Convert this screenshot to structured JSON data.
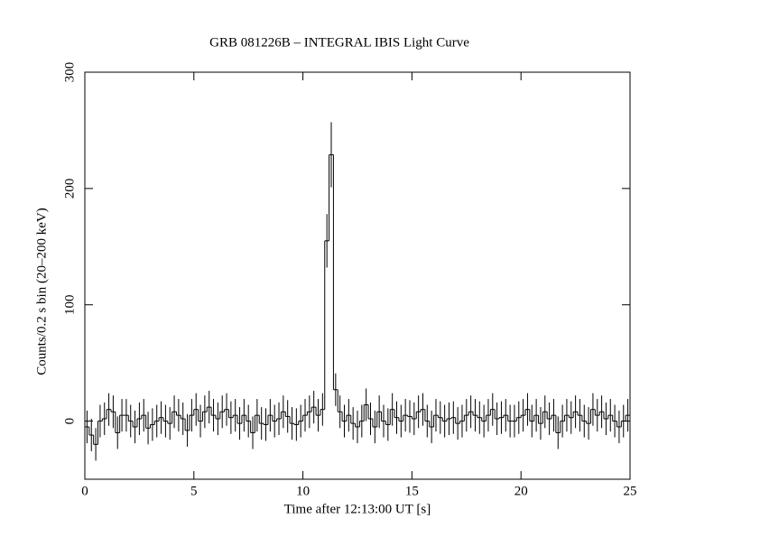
{
  "chart_data": {
    "type": "histogram",
    "title": "GRB 081226B – INTEGRAL IBIS Light Curve",
    "x_label": "Time after 12:13:00 UT [s]",
    "y_label": "Counts/0.2 s bin (20–200 keV)",
    "bins": [
      0,
      0.2,
      0.4,
      0.6,
      0.8,
      1,
      1.2,
      1.4,
      1.6,
      1.8,
      2,
      2.2,
      2.4,
      2.6,
      2.8,
      3,
      3.2,
      3.4,
      3.6,
      3.8,
      4,
      4.2,
      4.4,
      4.6,
      4.8,
      5,
      5.2,
      5.4,
      5.6,
      5.8,
      6,
      6.2,
      6.4,
      6.6,
      6.8,
      7,
      7.2,
      7.4,
      7.6,
      7.8,
      8,
      8.2,
      8.4,
      8.6,
      8.8,
      9,
      9.2,
      9.4,
      9.6,
      9.8,
      10,
      10.2,
      10.4,
      10.6,
      10.8,
      11,
      11.2,
      11.4,
      11.6,
      11.8,
      12,
      12.2,
      12.4,
      12.6,
      12.8,
      13,
      13.2,
      13.4,
      13.6,
      13.8,
      14,
      14.2,
      14.4,
      14.6,
      14.8,
      15,
      15.2,
      15.4,
      15.6,
      15.8,
      16,
      16.2,
      16.4,
      16.6,
      16.8,
      17,
      17.2,
      17.4,
      17.6,
      17.8,
      18,
      18.2,
      18.4,
      18.6,
      18.8,
      19,
      19.2,
      19.4,
      19.6,
      19.8,
      20,
      20.2,
      20.4,
      20.6,
      20.8,
      21,
      21.2,
      21.4,
      21.6,
      21.8,
      22,
      22.2,
      22.4,
      22.6,
      22.8,
      23,
      23.2,
      23.4,
      23.6,
      23.8,
      24,
      24.2,
      24.4,
      24.6,
      24.8,
      25
    ],
    "values": [
      -5,
      -12,
      -20,
      0,
      2,
      10,
      8,
      -10,
      5,
      5,
      0,
      -5,
      2,
      5,
      -6,
      -3,
      0,
      3,
      0,
      -2,
      8,
      5,
      2,
      -8,
      5,
      10,
      0,
      8,
      12,
      5,
      2,
      8,
      10,
      3,
      5,
      -2,
      5,
      0,
      -10,
      5,
      -2,
      -3,
      5,
      0,
      2,
      8,
      4,
      -2,
      -3,
      0,
      5,
      8,
      12,
      5,
      10,
      155,
      229,
      27,
      8,
      0,
      5,
      -2,
      -5,
      0,
      14,
      2,
      -5,
      8,
      0,
      -3,
      10,
      3,
      0,
      5,
      4,
      2,
      8,
      10,
      0,
      -5,
      5,
      3,
      0,
      2,
      3,
      -2,
      0,
      5,
      8,
      5,
      3,
      0,
      5,
      10,
      2,
      3,
      5,
      0,
      0,
      3,
      5,
      10,
      0,
      5,
      -2,
      8,
      2,
      5,
      -10,
      0,
      5,
      3,
      8,
      5,
      0,
      -2,
      10,
      5,
      8,
      2,
      5,
      0,
      -5,
      0,
      5
    ],
    "errors": [
      14,
      14,
      14,
      14,
      14,
      14,
      14,
      14,
      14,
      14,
      14,
      14,
      14,
      14,
      14,
      14,
      14,
      14,
      14,
      14,
      14,
      14,
      14,
      14,
      14,
      14,
      14,
      14,
      14,
      14,
      14,
      14,
      14,
      14,
      14,
      14,
      14,
      14,
      14,
      14,
      14,
      14,
      14,
      14,
      14,
      14,
      14,
      14,
      14,
      14,
      14,
      14,
      14,
      14,
      14,
      23,
      28,
      14,
      14,
      14,
      14,
      14,
      14,
      14,
      14,
      14,
      14,
      14,
      14,
      14,
      14,
      14,
      14,
      14,
      14,
      14,
      14,
      14,
      14,
      14,
      14,
      14,
      14,
      14,
      14,
      14,
      14,
      14,
      14,
      14,
      14,
      14,
      14,
      14,
      14,
      14,
      14,
      14,
      14,
      14,
      14,
      14,
      14,
      14,
      14,
      14,
      14,
      14,
      14,
      14,
      14,
      14,
      14,
      14,
      14,
      14,
      14,
      14,
      14,
      14,
      14,
      14,
      14,
      14,
      14
    ],
    "xlim": [
      0,
      25
    ],
    "xticks": [
      0,
      5,
      10,
      15,
      20,
      25
    ],
    "ylim": [
      -50,
      300
    ],
    "yticks": [
      0,
      100,
      200,
      300
    ],
    "color": "#000000"
  }
}
